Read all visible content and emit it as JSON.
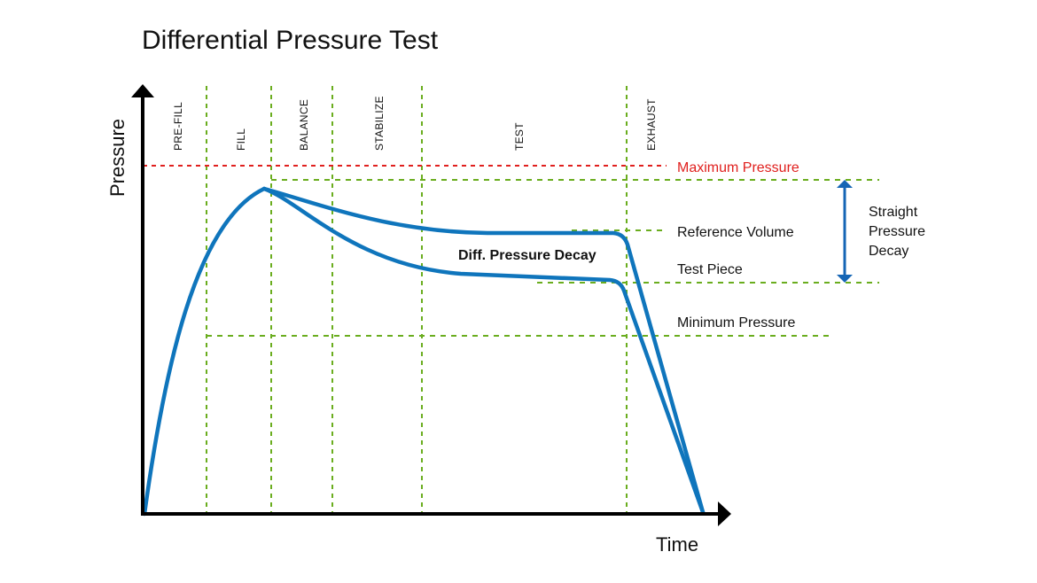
{
  "title": "Differential Pressure Test",
  "axes": {
    "y_label": "Pressure",
    "x_label": "Time"
  },
  "phases": [
    "PRE-FILL",
    "FILL",
    "BALANCE",
    "STABILIZE",
    "TEST",
    "EXHAUST"
  ],
  "levels": {
    "maximum": "Maximum Pressure",
    "reference": "Reference Volume",
    "test_piece": "Test Piece",
    "minimum": "Minimum Pressure"
  },
  "annotations": {
    "diff_decay": "Diff. Pressure Decay",
    "straight_decay": [
      "Straight",
      "Pressure",
      "Decay"
    ]
  },
  "colors": {
    "curve": "#0f75bc",
    "guides": "#6aad1e",
    "maximum": "#e0201e",
    "axis": "#000000"
  }
}
